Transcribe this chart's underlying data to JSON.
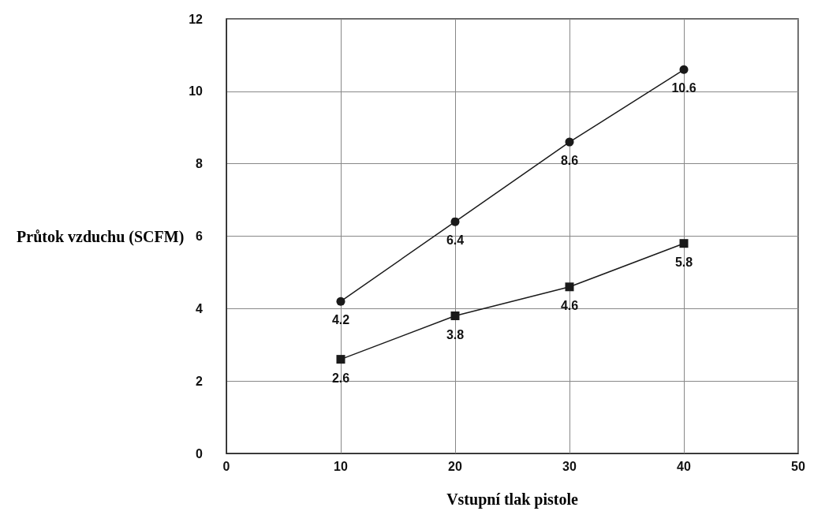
{
  "chart_data": {
    "type": "line",
    "xlabel": "Vstupní tlak pistole",
    "ylabel": "Průtok vzduchu (SCFM)",
    "x": [
      10,
      20,
      30,
      40
    ],
    "series": [
      {
        "color": "#1a1a1a",
        "marker": "circle",
        "values": [
          4.2,
          6.4,
          8.6,
          10.6
        ]
      },
      {
        "color": "#1a1a1a",
        "marker": "square",
        "values": [
          2.6,
          3.8,
          4.6,
          5.8
        ]
      }
    ],
    "xlim": [
      0,
      50
    ],
    "xticks": [
      0,
      10,
      20,
      30,
      40,
      50
    ],
    "ylim": [
      0,
      12
    ],
    "yticks": [
      0,
      2,
      4,
      6,
      8,
      10,
      12
    ],
    "grid": true,
    "data_labels": true,
    "line_style": "solid"
  }
}
